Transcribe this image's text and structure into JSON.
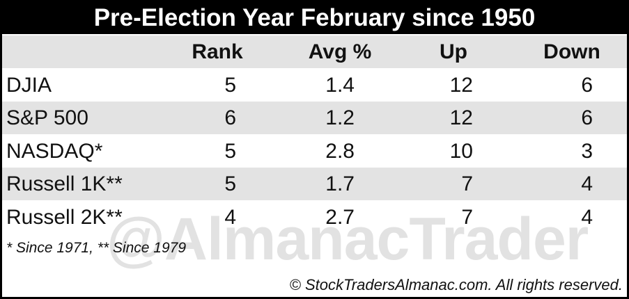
{
  "header": {
    "title": "Pre-Election Year February since 1950"
  },
  "table": {
    "columns": [
      "Rank",
      "Avg %",
      "Up",
      "Down"
    ],
    "rows": [
      [
        "DJIA",
        5,
        1.4,
        12,
        6
      ],
      [
        "S&P 500",
        6,
        1.2,
        12,
        6
      ],
      [
        "NASDAQ*",
        5,
        2.8,
        10,
        3
      ],
      [
        "Russell 1K**",
        5,
        1.7,
        7,
        4
      ],
      [
        "Russell 2K**",
        4,
        2.7,
        7,
        4
      ]
    ]
  },
  "footnote": "* Since 1971, ** Since 1979",
  "watermark": "@AlmanacTrader",
  "copyright": "© StockTradersAlmanac.com. All rights reserved."
}
